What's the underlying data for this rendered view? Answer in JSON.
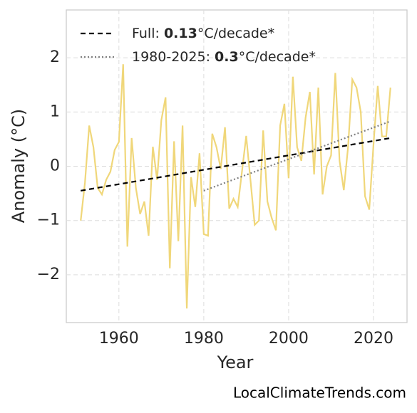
{
  "chart_data": {
    "type": "line",
    "x_label": "Year",
    "y_label": "Anomaly (°C)",
    "watermark": "LocalClimateTrends.com",
    "x": [
      1951,
      1952,
      1953,
      1954,
      1955,
      1956,
      1957,
      1958,
      1959,
      1960,
      1961,
      1962,
      1963,
      1964,
      1965,
      1966,
      1967,
      1968,
      1969,
      1970,
      1971,
      1972,
      1973,
      1974,
      1975,
      1976,
      1977,
      1978,
      1979,
      1980,
      1981,
      1982,
      1983,
      1984,
      1985,
      1986,
      1987,
      1988,
      1989,
      1990,
      1991,
      1992,
      1993,
      1994,
      1995,
      1996,
      1997,
      1998,
      1999,
      2000,
      2001,
      2002,
      2003,
      2004,
      2005,
      2006,
      2007,
      2008,
      2009,
      2010,
      2011,
      2012,
      2013,
      2014,
      2015,
      2016,
      2017,
      2018,
      2019,
      2020,
      2021,
      2022,
      2023,
      2024
    ],
    "series": [
      {
        "color": "#f0d77a",
        "values": [
          -1.0,
          -0.3,
          0.75,
          0.35,
          -0.4,
          -0.52,
          -0.25,
          -0.1,
          0.3,
          0.45,
          1.88,
          -1.48,
          0.52,
          -0.4,
          -0.88,
          -0.65,
          -1.28,
          0.36,
          -0.25,
          0.85,
          1.27,
          -1.88,
          0.46,
          -1.38,
          0.75,
          -2.62,
          -0.2,
          -0.75,
          0.24,
          -1.25,
          -1.28,
          0.6,
          0.35,
          -0.05,
          0.72,
          -0.78,
          -0.6,
          -0.75,
          -0.1,
          0.56,
          -0.25,
          -1.08,
          -1.0,
          0.66,
          -0.65,
          -0.95,
          -1.18,
          0.75,
          1.15,
          -0.22,
          1.65,
          0.35,
          0.1,
          0.9,
          1.37,
          -0.15,
          1.45,
          -0.52,
          0.0,
          0.2,
          1.72,
          0.1,
          -0.44,
          0.35,
          1.6,
          1.45,
          1.0,
          -0.55,
          -0.8,
          0.4,
          1.48,
          0.55,
          0.55,
          1.45
        ]
      }
    ],
    "trends": [
      {
        "label_parts": [
          "Full: ",
          "0.13",
          "°C/decade*"
        ],
        "x": [
          1951,
          2024
        ],
        "values": [
          -0.45,
          0.52
        ],
        "color": "#000000",
        "dash": "7 5"
      },
      {
        "label_parts": [
          "1980-2025: ",
          "0.3",
          "°C/decade*"
        ],
        "x": [
          1980,
          2024
        ],
        "values": [
          -0.45,
          0.83
        ],
        "color": "#808080",
        "dash": "2 3"
      }
    ],
    "xlim": [
      1947.6,
      2027.9
    ],
    "xticks": [
      1960,
      1980,
      2000,
      2020
    ],
    "ylim": [
      -2.88,
      2.88
    ],
    "yticks": [
      {
        "value": -2,
        "label": "−2"
      },
      {
        "value": -1,
        "label": "−1"
      },
      0,
      1,
      2
    ],
    "grid": true
  }
}
